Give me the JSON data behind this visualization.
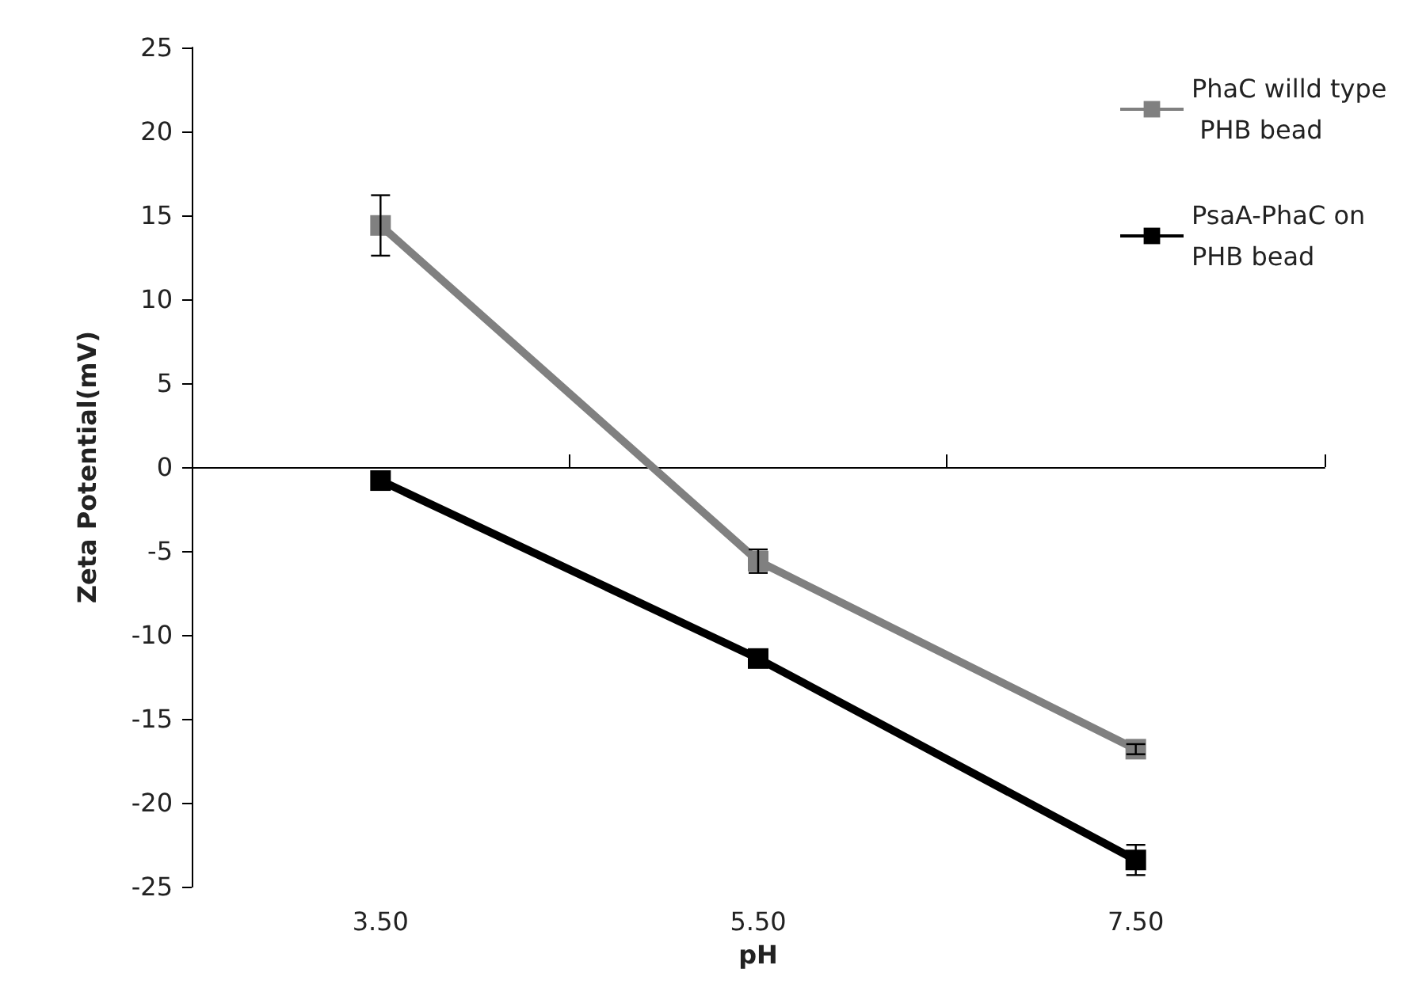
{
  "chart_data": {
    "type": "line",
    "xlabel": "pH",
    "ylabel": "Zeta Potential(mV)",
    "categories": [
      "3.50",
      "5.50",
      "7.50"
    ],
    "series": [
      {
        "name": "PhaC willd type PHB bead",
        "color": "#808080",
        "values": [
          14.4,
          -5.6,
          -16.8
        ],
        "errors": [
          1.8,
          0.7,
          0.3
        ]
      },
      {
        "name": "PsaA-PhaC on PHB bead",
        "color": "#000000",
        "values": [
          -0.8,
          -11.4,
          -23.4
        ],
        "errors": [
          0.3,
          null,
          0.9
        ]
      }
    ],
    "ylim": [
      -25,
      25
    ],
    "yticks": [
      -25,
      -20,
      -15,
      -10,
      -5,
      0,
      5,
      10,
      15,
      20,
      25
    ],
    "legend": "top right",
    "marker": "square",
    "line_style": "solid"
  }
}
